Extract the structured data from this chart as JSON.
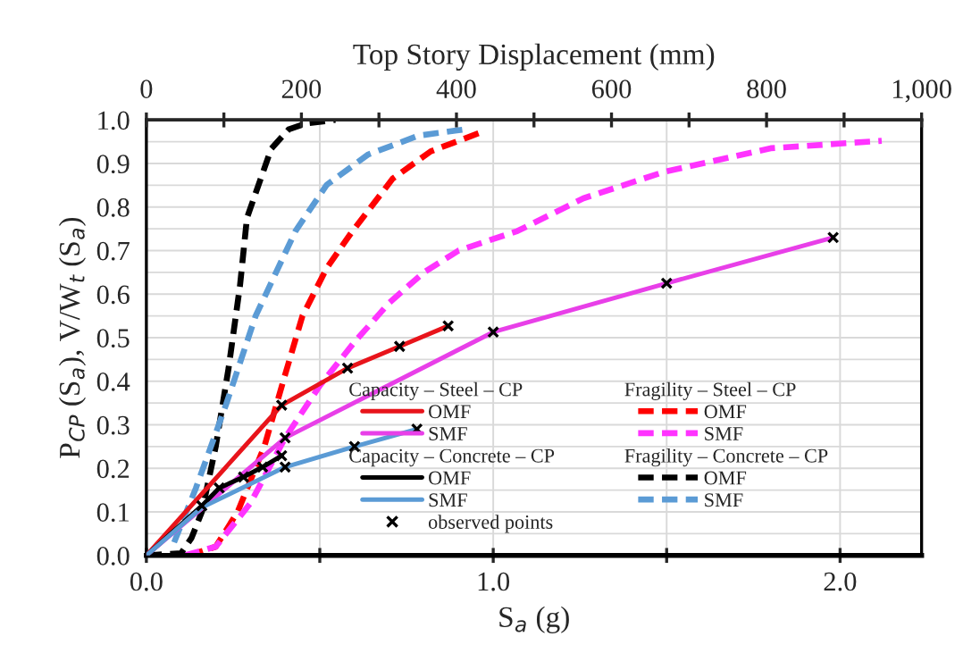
{
  "chart_data": {
    "type": "line",
    "xlabel": "S$_{a}$ (g)",
    "ylabel": "P$_{CP}$ (S$_{a}$), V/W$_{t}$ (S$_{a}$)",
    "x2label": "Top Story Displacement (mm)",
    "xlim": [
      0,
      2.235
    ],
    "ylim": [
      0,
      1.0
    ],
    "xticks": [
      {
        "value": 0,
        "label": "0.0"
      },
      {
        "value": 0.5,
        "label": null
      },
      {
        "value": 1.0,
        "label": "1.0"
      },
      {
        "value": 1.5,
        "label": null
      },
      {
        "value": 2.0,
        "label": "2.0"
      }
    ],
    "yticks": [
      {
        "value": 0,
        "label": "0.0"
      },
      {
        "value": 0.05,
        "label": null
      },
      {
        "value": 0.1,
        "label": "0.1"
      },
      {
        "value": 0.15,
        "label": null
      },
      {
        "value": 0.2,
        "label": "0.2"
      },
      {
        "value": 0.25,
        "label": null
      },
      {
        "value": 0.3,
        "label": "0.3"
      },
      {
        "value": 0.35,
        "label": null
      },
      {
        "value": 0.4,
        "label": "0.4"
      },
      {
        "value": 0.45,
        "label": null
      },
      {
        "value": 0.5,
        "label": "0.5"
      },
      {
        "value": 0.55,
        "label": null
      },
      {
        "value": 0.6,
        "label": "0.6"
      },
      {
        "value": 0.65,
        "label": null
      },
      {
        "value": 0.7,
        "label": "0.7"
      },
      {
        "value": 0.75,
        "label": null
      },
      {
        "value": 0.8,
        "label": "0.8"
      },
      {
        "value": 0.85,
        "label": null
      },
      {
        "value": 0.9,
        "label": "0.9"
      },
      {
        "value": 0.95,
        "label": null
      },
      {
        "value": 1.0,
        "label": "1.0"
      }
    ],
    "x2lim": [
      0,
      1000
    ],
    "x2ticks": [
      0,
      {
        "value": 100,
        "label": null
      },
      200,
      {
        "value": 300,
        "label": null
      },
      400,
      {
        "value": 500,
        "label": null
      },
      600,
      {
        "value": 700,
        "label": null
      },
      800,
      {
        "value": 900,
        "label": null
      },
      {
        "value": 1000,
        "label": "1,000"
      }
    ],
    "grid": true,
    "legend": "bottom right",
    "annotations": [
      "Capacity – Steel – CP",
      "Fragility – Steel – CP",
      "Capacity – Concrete – CP",
      "Fragility – Concrete – CP"
    ],
    "series": [
      {
        "name": "OMF",
        "color": "#e8141b",
        "line_style": "solid",
        "x": [
          0,
          0.39,
          0.58,
          0.73,
          0.87
        ],
        "values": [
          0,
          0.345,
          0.43,
          0.48,
          0.527
        ]
      },
      {
        "name": "SMF",
        "color": "#e83fe8",
        "line_style": "solid",
        "x": [
          0,
          0.4,
          1.0,
          1.5,
          1.98
        ],
        "values": [
          0,
          0.27,
          0.513,
          0.625,
          0.73
        ]
      },
      {
        "name": "OMF",
        "color": "#000000",
        "line_style": "solid",
        "x": [
          0,
          0.16,
          0.21,
          0.28,
          0.335,
          0.39
        ],
        "values": [
          0,
          0.114,
          0.155,
          0.18,
          0.203,
          0.229
        ]
      },
      {
        "name": "SMF",
        "color": "#5b9bd5",
        "line_style": "solid",
        "x": [
          0,
          0.16,
          0.4,
          0.6,
          0.78
        ],
        "values": [
          0,
          0.11,
          0.203,
          0.25,
          0.29
        ]
      },
      {
        "name": "OMF",
        "color": "#ff0000",
        "line_style": "dashed",
        "x": [
          0.12,
          0.2,
          0.263,
          0.34,
          0.4,
          0.45,
          0.52,
          0.59,
          0.71,
          0.82,
          0.96
        ],
        "values": [
          0,
          0.02,
          0.1,
          0.25,
          0.415,
          0.55,
          0.66,
          0.74,
          0.865,
          0.928,
          0.97
        ]
      },
      {
        "name": "SMF",
        "color": "#ff33ff",
        "line_style": "dashed",
        "x": [
          0.11,
          0.2,
          0.3,
          0.4,
          0.5,
          0.6,
          0.7,
          0.8,
          0.9,
          1.07,
          1.26,
          1.49,
          1.8,
          2.12
        ],
        "values": [
          0,
          0.02,
          0.12,
          0.27,
          0.39,
          0.49,
          0.58,
          0.65,
          0.7,
          0.745,
          0.82,
          0.88,
          0.935,
          0.952
        ]
      },
      {
        "name": "OMF",
        "color": "#000000",
        "line_style": "dashed",
        "x": [
          0.0,
          0.1,
          0.13,
          0.16,
          0.2,
          0.237,
          0.27,
          0.29,
          0.36,
          0.41,
          0.46,
          0.545
        ],
        "values": [
          0,
          0.005,
          0.04,
          0.1,
          0.25,
          0.43,
          0.62,
          0.775,
          0.934,
          0.978,
          0.992,
          1.0
        ]
      },
      {
        "name": "SMF",
        "color": "#5b9bd5",
        "line_style": "dashed",
        "x": [
          0.08,
          0.143,
          0.23,
          0.315,
          0.43,
          0.52,
          0.64,
          0.785,
          0.915
        ],
        "values": [
          0.03,
          0.155,
          0.347,
          0.55,
          0.745,
          0.851,
          0.921,
          0.964,
          0.978
        ]
      },
      {
        "name": "observed points",
        "type": "scatter",
        "marker": "cross",
        "color": "#000000",
        "x": [
          0.39,
          0.58,
          0.73,
          0.87,
          0.4,
          1.0,
          1.5,
          1.98,
          0.16,
          0.21,
          0.28,
          0.335,
          0.39,
          0.4,
          0.6,
          0.78
        ],
        "values": [
          0.345,
          0.43,
          0.48,
          0.527,
          0.27,
          0.513,
          0.625,
          0.73,
          0.114,
          0.155,
          0.18,
          0.203,
          0.229,
          0.203,
          0.25,
          0.29
        ]
      }
    ]
  }
}
